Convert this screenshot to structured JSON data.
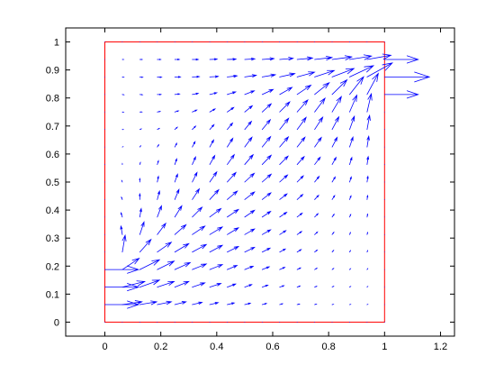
{
  "chart_data": {
    "type": "quiver",
    "color": "#0000ff",
    "box_color": "#ff0000",
    "xlim": [
      -0.14,
      1.25
    ],
    "ylim": [
      -0.05,
      1.05
    ],
    "xticks": [
      0,
      0.2,
      0.4,
      0.6,
      0.8,
      1,
      1.2
    ],
    "yticks": [
      0,
      0.1,
      0.2,
      0.3,
      0.4,
      0.5,
      0.6,
      0.7,
      0.8,
      0.9,
      1
    ],
    "x": [
      0,
      0.0625,
      0.125,
      0.1875,
      0.25,
      0.3125,
      0.375,
      0.4375,
      0.5,
      0.5625,
      0.625,
      0.6875,
      0.75,
      0.8125,
      0.875,
      0.9375,
      1
    ],
    "y": [
      0,
      0.0625,
      0.125,
      0.1875,
      0.25,
      0.3125,
      0.375,
      0.4375,
      0.5,
      0.5625,
      0.625,
      0.6875,
      0.75,
      0.8125,
      0.875,
      0.9375,
      1
    ],
    "u": [
      [
        0,
        0,
        0,
        0,
        0,
        0,
        0,
        0,
        0,
        0,
        0,
        0,
        0,
        0,
        0,
        0,
        0
      ],
      [
        0.12,
        0.07,
        0.06,
        0.05,
        0.04,
        0.035,
        0.03,
        0.025,
        0.02,
        0.015,
        0.01,
        0.008,
        0.006,
        0.004,
        0.003,
        0.002,
        0
      ],
      [
        0.12,
        0.08,
        0.07,
        0.06,
        0.05,
        0.045,
        0.04,
        0.03,
        0.025,
        0.02,
        0.015,
        0.01,
        0.007,
        0.005,
        0.003,
        0.002,
        0
      ],
      [
        0.12,
        0.06,
        0.07,
        0.06,
        0.055,
        0.05,
        0.045,
        0.035,
        0.03,
        0.025,
        0.018,
        0.012,
        0.008,
        0.005,
        0.003,
        0.002,
        0
      ],
      [
        0,
        0.01,
        0.04,
        0.05,
        0.05,
        0.05,
        0.045,
        0.04,
        0.035,
        0.028,
        0.02,
        0.014,
        0.009,
        0.005,
        0.003,
        0.002,
        0
      ],
      [
        0,
        -0.005,
        0.015,
        0.03,
        0.04,
        0.045,
        0.045,
        0.04,
        0.035,
        0.03,
        0.022,
        0.016,
        0.01,
        0.006,
        0.003,
        0.002,
        0
      ],
      [
        0,
        -0.005,
        0.005,
        0.015,
        0.025,
        0.035,
        0.04,
        0.04,
        0.035,
        0.03,
        0.025,
        0.018,
        0.012,
        0.007,
        0.004,
        0.002,
        0
      ],
      [
        0,
        -0.003,
        0,
        0.008,
        0.015,
        0.025,
        0.032,
        0.036,
        0.035,
        0.031,
        0.026,
        0.02,
        0.014,
        0.009,
        0.005,
        0.002,
        0
      ],
      [
        0,
        -0.002,
        0,
        0.004,
        0.01,
        0.017,
        0.025,
        0.031,
        0.034,
        0.032,
        0.028,
        0.022,
        0.016,
        0.011,
        0.006,
        0.003,
        0
      ],
      [
        0,
        0,
        0.002,
        0.004,
        0.007,
        0.012,
        0.018,
        0.025,
        0.03,
        0.032,
        0.03,
        0.025,
        0.02,
        0.014,
        0.008,
        0.004,
        0
      ],
      [
        0,
        0.002,
        0.003,
        0.005,
        0.007,
        0.01,
        0.014,
        0.02,
        0.026,
        0.03,
        0.031,
        0.028,
        0.024,
        0.018,
        0.012,
        0.006,
        0
      ],
      [
        0,
        0.003,
        0.005,
        0.007,
        0.009,
        0.012,
        0.015,
        0.019,
        0.024,
        0.029,
        0.032,
        0.032,
        0.029,
        0.024,
        0.017,
        0.009,
        0
      ],
      [
        0,
        0.004,
        0.007,
        0.01,
        0.013,
        0.016,
        0.019,
        0.023,
        0.027,
        0.032,
        0.036,
        0.038,
        0.037,
        0.033,
        0.026,
        0.015,
        0
      ],
      [
        0,
        0.005,
        0.009,
        0.013,
        0.017,
        0.021,
        0.025,
        0.03,
        0.034,
        0.039,
        0.044,
        0.049,
        0.052,
        0.053,
        0.05,
        0.04,
        0.12
      ],
      [
        0,
        0.005,
        0.01,
        0.015,
        0.02,
        0.025,
        0.03,
        0.035,
        0.041,
        0.047,
        0.054,
        0.062,
        0.07,
        0.078,
        0.085,
        0.09,
        0.16
      ],
      [
        0,
        0.004,
        0.008,
        0.012,
        0.016,
        0.021,
        0.026,
        0.031,
        0.036,
        0.042,
        0.048,
        0.055,
        0.062,
        0.07,
        0.078,
        0.085,
        0.12
      ],
      [
        0,
        0,
        0,
        0,
        0,
        0,
        0,
        0,
        0,
        0,
        0,
        0,
        0,
        0,
        0,
        0,
        0
      ]
    ],
    "v": [
      [
        0,
        0,
        0,
        0,
        0,
        0,
        0,
        0,
        0,
        0,
        0,
        0,
        0,
        0,
        0,
        0,
        0
      ],
      [
        0,
        0.01,
        0.01,
        0.01,
        0.01,
        0.008,
        0.007,
        0.006,
        0.005,
        0.004,
        0.003,
        0.002,
        0.002,
        0.001,
        0.001,
        0.001,
        0
      ],
      [
        0,
        0.02,
        0.025,
        0.02,
        0.02,
        0.015,
        0.013,
        0.011,
        0.009,
        0.007,
        0.005,
        0.004,
        0.003,
        0.003,
        0.002,
        0.002,
        0
      ],
      [
        0,
        0.04,
        0.035,
        0.03,
        0.025,
        0.02,
        0.018,
        0.015,
        0.012,
        0.01,
        0.008,
        0.006,
        0.005,
        0.004,
        0.003,
        0.003,
        0
      ],
      [
        0,
        0.06,
        0.045,
        0.035,
        0.03,
        0.027,
        0.024,
        0.02,
        0.017,
        0.014,
        0.011,
        0.009,
        0.007,
        0.006,
        0.005,
        0.005,
        0
      ],
      [
        0,
        0.03,
        0.045,
        0.04,
        0.035,
        0.03,
        0.027,
        0.024,
        0.02,
        0.017,
        0.014,
        0.011,
        0.009,
        0.008,
        0.007,
        0.007,
        0
      ],
      [
        0,
        0.015,
        0.03,
        0.04,
        0.04,
        0.035,
        0.03,
        0.027,
        0.024,
        0.02,
        0.017,
        0.014,
        0.012,
        0.01,
        0.009,
        0.01,
        0
      ],
      [
        0,
        0.008,
        0.02,
        0.03,
        0.036,
        0.038,
        0.035,
        0.03,
        0.027,
        0.024,
        0.02,
        0.018,
        0.015,
        0.014,
        0.013,
        0.014,
        0
      ],
      [
        0,
        0.005,
        0.012,
        0.02,
        0.028,
        0.034,
        0.036,
        0.034,
        0.031,
        0.028,
        0.025,
        0.022,
        0.02,
        0.018,
        0.018,
        0.02,
        0
      ],
      [
        0,
        0.003,
        0.007,
        0.013,
        0.02,
        0.027,
        0.032,
        0.035,
        0.035,
        0.033,
        0.03,
        0.028,
        0.026,
        0.025,
        0.025,
        0.028,
        0
      ],
      [
        0,
        0.001,
        0.004,
        0.008,
        0.013,
        0.019,
        0.025,
        0.031,
        0.035,
        0.037,
        0.036,
        0.035,
        0.034,
        0.034,
        0.035,
        0.038,
        0
      ],
      [
        0,
        0,
        0.002,
        0.004,
        0.008,
        0.012,
        0.017,
        0.023,
        0.029,
        0.035,
        0.04,
        0.043,
        0.044,
        0.045,
        0.047,
        0.05,
        0
      ],
      [
        0,
        -0.001,
        0,
        0.002,
        0.004,
        0.007,
        0.011,
        0.016,
        0.022,
        0.029,
        0.036,
        0.043,
        0.049,
        0.055,
        0.06,
        0.065,
        0
      ],
      [
        0,
        -0.001,
        -0.001,
        0,
        0.002,
        0.004,
        0.006,
        0.009,
        0.013,
        0.018,
        0.025,
        0.033,
        0.042,
        0.052,
        0.063,
        0.075,
        0
      ],
      [
        0,
        -0.001,
        -0.001,
        -0.001,
        0,
        0.001,
        0.002,
        0.004,
        0.006,
        0.008,
        0.012,
        0.017,
        0.023,
        0.03,
        0.04,
        0.05,
        0
      ],
      [
        0,
        0,
        0,
        0,
        0,
        0,
        0.001,
        0.001,
        0.002,
        0.003,
        0.004,
        0.005,
        0.007,
        0.009,
        0.012,
        0.015,
        0
      ],
      [
        0,
        0,
        0,
        0,
        0,
        0,
        0,
        0,
        0,
        0,
        0,
        0,
        0,
        0,
        0,
        0,
        0
      ]
    ]
  }
}
